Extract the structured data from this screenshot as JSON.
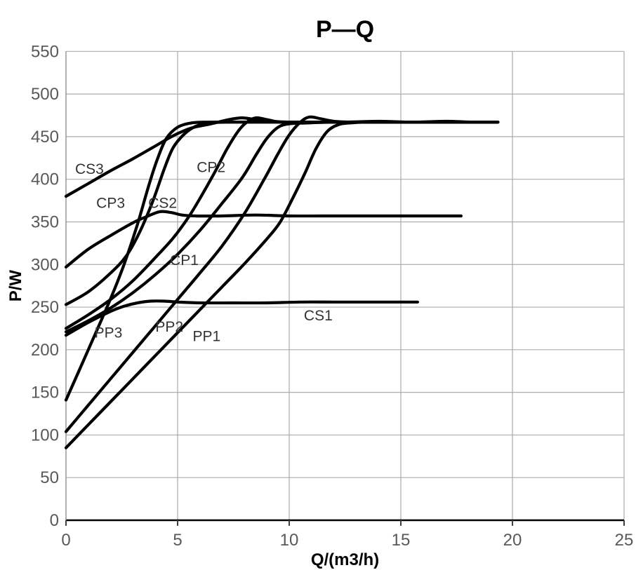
{
  "title": "P—Q",
  "colors": {
    "curve": "#000000",
    "grid": "#ababab",
    "axis_line": "#000000",
    "tick_text": "#595959",
    "label_text": "#333333",
    "background": "#ffffff"
  },
  "chart_data": {
    "type": "line",
    "title": "P—Q",
    "xlabel": "Q/(m3/h)",
    "ylabel": "P/W",
    "xlim": [
      0,
      25
    ],
    "ylim": [
      0,
      550
    ],
    "x_ticks": [
      0,
      5,
      10,
      15,
      20,
      25
    ],
    "y_ticks": [
      0,
      50,
      100,
      150,
      200,
      250,
      300,
      350,
      400,
      450,
      500,
      550
    ],
    "grid": true,
    "legend": "none",
    "line_color": "#000000",
    "line_width": 4.2,
    "series": [
      {
        "name": "CS3",
        "points": [
          [
            0,
            380
          ],
          [
            1,
            395
          ],
          [
            2,
            410
          ],
          [
            3,
            424
          ],
          [
            4,
            439
          ],
          [
            4.8,
            451
          ],
          [
            5.6,
            460
          ],
          [
            6.5,
            465
          ],
          [
            7.3,
            470
          ],
          [
            7.9,
            472
          ],
          [
            8.5,
            470
          ],
          [
            9.2,
            468
          ],
          [
            10,
            467
          ],
          [
            11,
            467
          ],
          [
            12.5,
            467
          ],
          [
            14,
            468
          ],
          [
            15.5,
            467
          ],
          [
            17,
            468
          ],
          [
            18.2,
            467
          ],
          [
            19.35,
            467
          ]
        ]
      },
      {
        "name": "CS2",
        "points": [
          [
            0,
            297
          ],
          [
            1,
            318
          ],
          [
            2,
            334
          ],
          [
            3,
            349
          ],
          [
            3.6,
            356
          ],
          [
            4.2,
            362
          ],
          [
            4.7,
            361
          ],
          [
            5.2,
            358
          ],
          [
            5.8,
            357
          ],
          [
            7,
            357
          ],
          [
            8.5,
            358
          ],
          [
            10,
            357
          ],
          [
            11.5,
            357
          ],
          [
            13,
            357
          ],
          [
            14.5,
            357
          ],
          [
            16,
            357
          ],
          [
            17.7,
            357
          ]
        ]
      },
      {
        "name": "CS1",
        "points": [
          [
            0,
            217
          ],
          [
            1,
            232
          ],
          [
            2,
            245
          ],
          [
            2.6,
            251
          ],
          [
            3.2,
            255
          ],
          [
            3.8,
            257
          ],
          [
            4.4,
            257
          ],
          [
            5,
            256
          ],
          [
            6,
            255
          ],
          [
            7.5,
            255
          ],
          [
            9,
            255
          ],
          [
            10.5,
            256
          ],
          [
            12,
            256
          ],
          [
            13.5,
            256
          ],
          [
            15.75,
            256
          ]
        ]
      },
      {
        "name": "CP3",
        "points": [
          [
            0,
            253
          ],
          [
            1,
            268
          ],
          [
            2,
            290
          ],
          [
            2.7,
            310
          ],
          [
            3.3,
            338
          ],
          [
            3.9,
            375
          ],
          [
            4.4,
            412
          ],
          [
            4.8,
            437
          ],
          [
            5.3,
            453
          ],
          [
            5.8,
            462
          ],
          [
            6.4,
            466
          ],
          [
            7.2,
            467
          ],
          [
            8.5,
            467
          ],
          [
            10,
            467
          ],
          [
            12,
            467
          ],
          [
            14,
            467
          ],
          [
            16,
            467
          ],
          [
            18,
            467
          ],
          [
            19.35,
            467
          ]
        ]
      },
      {
        "name": "CP2",
        "points": [
          [
            0,
            225
          ],
          [
            1,
            241
          ],
          [
            2,
            259
          ],
          [
            3,
            281
          ],
          [
            4,
            308
          ],
          [
            4.8,
            331
          ],
          [
            5.5,
            356
          ],
          [
            6.1,
            382
          ],
          [
            6.7,
            410
          ],
          [
            7.2,
            435
          ],
          [
            7.7,
            456
          ],
          [
            8.1,
            467
          ],
          [
            8.5,
            472
          ],
          [
            9,
            470
          ],
          [
            9.6,
            467
          ],
          [
            10.5,
            467
          ],
          [
            12,
            467
          ],
          [
            14,
            467
          ],
          [
            16,
            467
          ],
          [
            18,
            467
          ],
          [
            19.35,
            467
          ]
        ]
      },
      {
        "name": "CP1",
        "points": [
          [
            0,
            221
          ],
          [
            1,
            234
          ],
          [
            2,
            249
          ],
          [
            3,
            267
          ],
          [
            4,
            288
          ],
          [
            5,
            312
          ],
          [
            6,
            340
          ],
          [
            7,
            372
          ],
          [
            7.9,
            402
          ],
          [
            8.5,
            428
          ],
          [
            9,
            448
          ],
          [
            9.5,
            461
          ],
          [
            10,
            465
          ],
          [
            10.8,
            466
          ],
          [
            12,
            467
          ],
          [
            13.5,
            467
          ],
          [
            15,
            467
          ],
          [
            17,
            467
          ],
          [
            19.35,
            467
          ]
        ]
      },
      {
        "name": "PP3",
        "points": [
          [
            0,
            141
          ],
          [
            1,
            200
          ],
          [
            2,
            260
          ],
          [
            2.6,
            300
          ],
          [
            3.2,
            347
          ],
          [
            3.7,
            392
          ],
          [
            4.1,
            424
          ],
          [
            4.5,
            448
          ],
          [
            5,
            461
          ],
          [
            5.6,
            466
          ],
          [
            6.4,
            467
          ],
          [
            8,
            467
          ],
          [
            10,
            467
          ],
          [
            12,
            467
          ],
          [
            14,
            467
          ],
          [
            16,
            467
          ],
          [
            18,
            467
          ],
          [
            19.35,
            467
          ]
        ]
      },
      {
        "name": "PP2",
        "points": [
          [
            0,
            104
          ],
          [
            1,
            135
          ],
          [
            2,
            166
          ],
          [
            3,
            197
          ],
          [
            4,
            228
          ],
          [
            5,
            259
          ],
          [
            6,
            290
          ],
          [
            7,
            322
          ],
          [
            8,
            360
          ],
          [
            8.9,
            401
          ],
          [
            9.5,
            430
          ],
          [
            10,
            452
          ],
          [
            10.5,
            467
          ],
          [
            10.9,
            473
          ],
          [
            11.4,
            471
          ],
          [
            12,
            468
          ],
          [
            12.8,
            467
          ],
          [
            14,
            467
          ],
          [
            16,
            467
          ],
          [
            18,
            467
          ],
          [
            19.35,
            467
          ]
        ]
      },
      {
        "name": "PP1",
        "points": [
          [
            0,
            85
          ],
          [
            1,
            112
          ],
          [
            2,
            139
          ],
          [
            3,
            166
          ],
          [
            4,
            193
          ],
          [
            5,
            220
          ],
          [
            6,
            247
          ],
          [
            7,
            274
          ],
          [
            8,
            301
          ],
          [
            9,
            330
          ],
          [
            9.6,
            350
          ],
          [
            10.2,
            380
          ],
          [
            10.7,
            407
          ],
          [
            11.2,
            436
          ],
          [
            11.7,
            456
          ],
          [
            12.2,
            464
          ],
          [
            12.7,
            466
          ],
          [
            13.5,
            467
          ],
          [
            15,
            467
          ],
          [
            16.5,
            467
          ],
          [
            18,
            467
          ],
          [
            19.35,
            467
          ]
        ]
      }
    ],
    "curve_labels": [
      {
        "text": "CS3",
        "x": 1.05,
        "y": 412
      },
      {
        "text": "CP3",
        "x": 2.0,
        "y": 372
      },
      {
        "text": "CS2",
        "x": 4.33,
        "y": 372
      },
      {
        "text": "CP2",
        "x": 6.5,
        "y": 414
      },
      {
        "text": "CP1",
        "x": 5.3,
        "y": 305
      },
      {
        "text": "CS1",
        "x": 11.3,
        "y": 240
      },
      {
        "text": "PP3",
        "x": 1.9,
        "y": 220
      },
      {
        "text": "PP2",
        "x": 4.63,
        "y": 227
      },
      {
        "text": "PP1",
        "x": 6.3,
        "y": 216
      }
    ]
  }
}
